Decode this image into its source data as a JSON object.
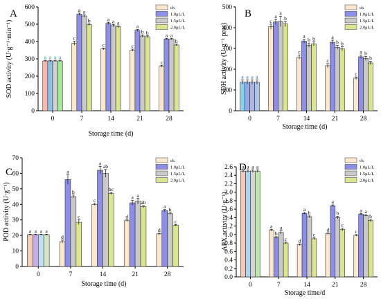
{
  "figure": {
    "colors": {
      "ck": "#fbe8cf",
      "s1": "#8d8ee8",
      "s2": "#c9c9c9",
      "s3": "#dbe58f",
      "panelA_cc": [
        "#f6b8ad",
        "#8cc2e8",
        "#d2d2d2",
        "#a0ec95"
      ],
      "panelB_d0": [
        "#8ad1ea",
        "#93a9e8",
        "#b0b4e0",
        "#a9c5ea"
      ],
      "panelC_d0": [
        "#efd0b8",
        "#c6ace0",
        "#bfe0ee",
        "#d6e4c8"
      ],
      "panelD_d0": [
        "#f4c9b9",
        "#aad3f0",
        "#d4d4d4",
        "#c0e6b0"
      ],
      "sig_letter_green": "#1fa080",
      "sig_letter_blue": "#2857c8"
    }
  },
  "chart_data": [
    {
      "panel": "A",
      "type": "bar",
      "ylabel": "SOD activity (U·g⁻¹·min⁻¹)",
      "xlabel": "Storage time (d)",
      "ylim": [
        0,
        600
      ],
      "yticks": [
        "0",
        "100",
        "200",
        "300",
        "400",
        "500",
        "600"
      ],
      "categories": [
        "0",
        "7",
        "14",
        "21",
        "28"
      ],
      "legend": {
        "position": "top-right",
        "entries": [
          "ck",
          "1.0μL/L",
          "1.5μL/L",
          "2.0μL/L"
        ]
      },
      "series": [
        {
          "name": "ck",
          "values": [
            288,
            390,
            357,
            350,
            258
          ],
          "errors": [
            4,
            12,
            5,
            6,
            5
          ],
          "letters": [
            "a",
            "c",
            "c",
            "c",
            "c"
          ]
        },
        {
          "name": "1.0μL/L",
          "values": [
            288,
            558,
            505,
            465,
            415
          ],
          "errors": [
            4,
            6,
            6,
            5,
            4
          ],
          "letters": [
            "a",
            "a",
            "a",
            "a",
            "a"
          ]
        },
        {
          "name": "1.5μL/L",
          "values": [
            288,
            548,
            492,
            432,
            415
          ],
          "errors": [
            4,
            6,
            6,
            6,
            4
          ],
          "letters": [
            "a",
            "a",
            "a",
            "b",
            "a"
          ]
        },
        {
          "name": "2.0μL/L",
          "values": [
            288,
            498,
            485,
            428,
            380
          ],
          "errors": [
            4,
            5,
            5,
            5,
            5
          ],
          "letters": [
            "a",
            "b",
            "a",
            "b",
            "b"
          ]
        }
      ]
    },
    {
      "panel": "B",
      "type": "bar",
      "ylabel": "SDH activity (U·g⁻¹ prot)",
      "xlabel": "Storage time (d)",
      "ylim": [
        0,
        500
      ],
      "yticks": [
        "0",
        "100",
        "200",
        "300",
        "400",
        "500"
      ],
      "categories": [
        "0",
        "7",
        "14",
        "21",
        "28"
      ],
      "legend": {
        "position": "top-right",
        "entries": [
          "ck",
          "1.0μL/L",
          "1.5μL/L",
          "2.0μL/L"
        ]
      },
      "series": [
        {
          "name": "ck",
          "values": [
            138,
            405,
            258,
            217,
            157
          ],
          "errors": [
            10,
            12,
            10,
            10,
            6
          ],
          "letters": [
            "a",
            "c",
            "c",
            "c",
            "c"
          ]
        },
        {
          "name": "1.0μL/L",
          "values": [
            138,
            428,
            335,
            330,
            260
          ],
          "errors": [
            10,
            12,
            10,
            10,
            8
          ],
          "letters": [
            "a",
            "a",
            "a",
            "a",
            "a"
          ]
        },
        {
          "name": "1.5μL/L",
          "values": [
            138,
            430,
            316,
            305,
            252
          ],
          "errors": [
            10,
            25,
            10,
            10,
            10
          ],
          "letters": [
            "a",
            "a",
            "b",
            "b",
            "b"
          ]
        },
        {
          "name": "2.0μL/L",
          "values": [
            138,
            418,
            322,
            298,
            230
          ],
          "errors": [
            10,
            12,
            10,
            10,
            8
          ],
          "letters": [
            "a",
            "b",
            "b",
            "b",
            "b"
          ]
        }
      ]
    },
    {
      "panel": "C",
      "type": "bar",
      "ylabel": "POD activity (U·g⁻¹)",
      "xlabel": "Storage time (d)",
      "ylim": [
        0,
        70
      ],
      "yticks": [
        "0",
        "10",
        "20",
        "30",
        "40",
        "50",
        "60",
        "70"
      ],
      "categories": [
        "0",
        "7",
        "14",
        "21",
        "28"
      ],
      "legend": {
        "position": "top-right",
        "entries": [
          "ck",
          "1.0μL/L",
          "1.5μL/L",
          "2.0μL/L"
        ]
      },
      "series": [
        {
          "name": "ck",
          "values": [
            20.5,
            16,
            40,
            29.5,
            21
          ],
          "errors": [
            0.3,
            1,
            0.6,
            0.5,
            0.4
          ],
          "letters": [
            "a",
            "d",
            "c",
            "d",
            "d"
          ]
        },
        {
          "name": "1.0μL/L",
          "values": [
            20.5,
            56,
            62,
            41,
            36
          ],
          "errors": [
            0.3,
            3,
            2.5,
            1.5,
            0.7
          ],
          "letters": [
            "a",
            "a",
            "a",
            "a",
            "a"
          ]
        },
        {
          "name": "1.5μL/L",
          "values": [
            20.5,
            45,
            60,
            42,
            34
          ],
          "errors": [
            0.3,
            1,
            2.5,
            1.8,
            0.6
          ],
          "letters": [
            "a",
            "b",
            "ab",
            "a",
            "b"
          ]
        },
        {
          "name": "2.0μL/L",
          "values": [
            20.5,
            28.5,
            47,
            38.5,
            26.5
          ],
          "errors": [
            0.3,
            1.5,
            0.6,
            0.7,
            0.5
          ],
          "letters": [
            "a",
            "c",
            "bc",
            "ab",
            "c"
          ]
        }
      ]
    },
    {
      "panel": "D",
      "type": "bar",
      "ylabel": "APX activity (U·g⁻¹)",
      "xlabel": "Storage time/d",
      "ylim": [
        0,
        2.6
      ],
      "yticks": [
        "0.0",
        "0.2",
        "0.4",
        "0.6",
        "0.8",
        "1.0",
        "1.2",
        "1.4",
        "1.6",
        "1.8",
        "2.0",
        "2.2",
        "2.4",
        "2.6"
      ],
      "categories": [
        "0",
        "7",
        "14",
        "21",
        "28"
      ],
      "legend": {
        "position": "top-right",
        "entries": [
          "ck",
          "1.0μL/L",
          "1.5μL/L",
          "2.0μL/L"
        ]
      },
      "series": [
        {
          "name": "ck",
          "values": [
            2.5,
            1.1,
            0.76,
            1.02,
            0.98
          ],
          "errors": [
            0.03,
            0.02,
            0.02,
            0.02,
            0.02
          ],
          "letters": [
            "a",
            "a",
            "d",
            "d",
            "c"
          ]
        },
        {
          "name": "1.0μL/L",
          "values": [
            2.5,
            0.93,
            1.5,
            1.68,
            1.48
          ],
          "errors": [
            0.03,
            0.02,
            0.02,
            0.02,
            0.02
          ],
          "letters": [
            "a",
            "b",
            "a",
            "a",
            "a"
          ]
        },
        {
          "name": "1.5μL/L",
          "values": [
            2.5,
            1.05,
            1.42,
            1.4,
            1.45
          ],
          "errors": [
            0.03,
            0.04,
            0.02,
            0.03,
            0.02
          ],
          "letters": [
            "a",
            "a",
            "b",
            "b",
            "a"
          ]
        },
        {
          "name": "2.0μL/L",
          "values": [
            2.5,
            0.8,
            0.9,
            1.12,
            1.33
          ],
          "errors": [
            0.03,
            0.02,
            0.02,
            0.03,
            0.03
          ],
          "letters": [
            "a",
            "c",
            "c",
            "c",
            "b"
          ]
        }
      ]
    }
  ]
}
